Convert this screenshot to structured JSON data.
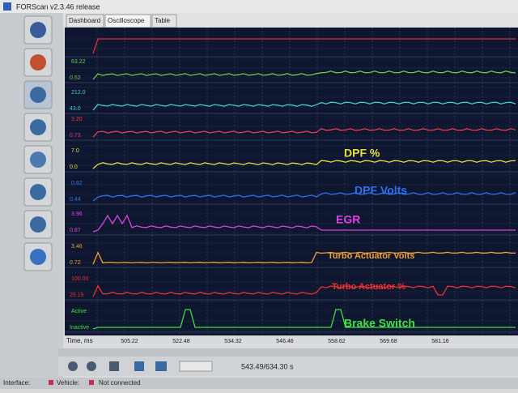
{
  "window": {
    "title": "FORScan v2.3.46 release"
  },
  "tabs": [
    "Dashboard",
    "Oscilloscope",
    "Table"
  ],
  "channels": [
    {
      "top": "",
      "bottom": "",
      "annotation": "",
      "color": "#e0303a"
    },
    {
      "top": "63.22",
      "bottom": "0.52",
      "annotation": "",
      "color": "#6ad040"
    },
    {
      "top": "212.0",
      "bottom": "43.0",
      "annotation": "",
      "color": "#40d0d0"
    },
    {
      "top": "3.20",
      "bottom": "0.73",
      "annotation": "",
      "color": "#e84050"
    },
    {
      "top": "7.0",
      "bottom": "0.0",
      "annotation": "DPF %",
      "color": "#e8e040"
    },
    {
      "top": "0.82",
      "bottom": "0.44",
      "annotation": "DPF Volts",
      "color": "#3070f0"
    },
    {
      "top": "3.96",
      "bottom": "0.87",
      "annotation": "EGR",
      "color": "#e040e0"
    },
    {
      "top": "3.46",
      "bottom": "0.72",
      "annotation": "Turbo Actuator Volts",
      "color": "#f0a030"
    },
    {
      "top": "100.00",
      "bottom": "25.15",
      "annotation": "Turbo Actuator %",
      "color": "#f03030"
    },
    {
      "top": "Active",
      "bottom": "Inactive",
      "annotation": "Brake Switch",
      "color": "#40e040"
    }
  ],
  "x_axis": {
    "label": "Time, ms",
    "ticks": [
      "505.22",
      "522.48",
      "534.32",
      "546.46",
      "558.62",
      "569.68",
      "581.16"
    ]
  },
  "toolbar": {
    "time": "543.49/634.30 s"
  },
  "status": {
    "interface": "Interface:",
    "vehicle": "Vehicle:",
    "connection": "Not connected"
  }
}
